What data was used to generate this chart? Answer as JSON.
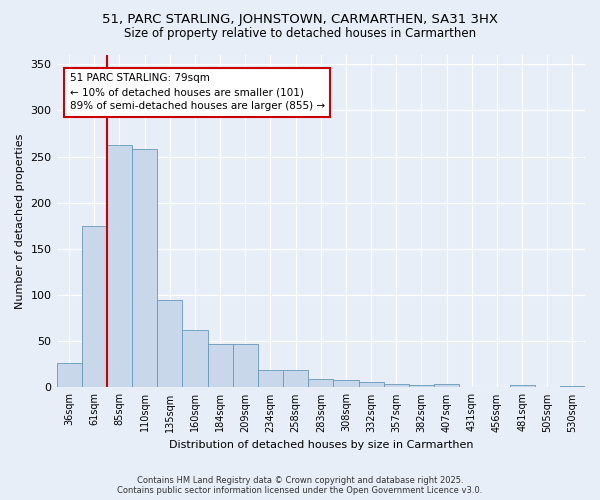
{
  "title": "51, PARC STARLING, JOHNSTOWN, CARMARTHEN, SA31 3HX",
  "subtitle": "Size of property relative to detached houses in Carmarthen",
  "xlabel": "Distribution of detached houses by size in Carmarthen",
  "ylabel": "Number of detached properties",
  "bar_color": "#c8d8ea",
  "bar_edge_color": "#6699bb",
  "categories": [
    "36sqm",
    "61sqm",
    "85sqm",
    "110sqm",
    "135sqm",
    "160sqm",
    "184sqm",
    "209sqm",
    "234sqm",
    "258sqm",
    "283sqm",
    "308sqm",
    "332sqm",
    "357sqm",
    "382sqm",
    "407sqm",
    "431sqm",
    "456sqm",
    "481sqm",
    "505sqm",
    "530sqm"
  ],
  "values": [
    26,
    175,
    262,
    258,
    95,
    62,
    47,
    47,
    19,
    19,
    9,
    8,
    6,
    4,
    3,
    4,
    1,
    1,
    3,
    1,
    2
  ],
  "vline_x": 1.5,
  "vline_color": "#cc0000",
  "annotation_text": "51 PARC STARLING: 79sqm\n← 10% of detached houses are smaller (101)\n89% of semi-detached houses are larger (855) →",
  "ylim": [
    0,
    360
  ],
  "yticks": [
    0,
    50,
    100,
    150,
    200,
    250,
    300,
    350
  ],
  "bg_color": "#e8eef8",
  "fig_bg_color": "#e8eef8",
  "grid_color": "#ffffff",
  "footer_line1": "Contains HM Land Registry data © Crown copyright and database right 2025.",
  "footer_line2": "Contains public sector information licensed under the Open Government Licence v3.0."
}
